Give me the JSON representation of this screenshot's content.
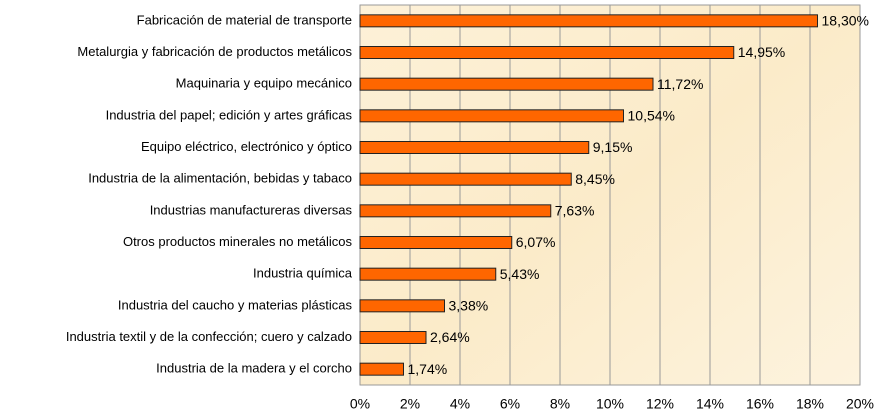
{
  "chart_data": {
    "type": "barh",
    "categories": [
      "Fabricación de material de transporte",
      "Metalurgia y fabricación de productos metálicos",
      "Maquinaria y equipo mecánico",
      "Industria del papel; edición y artes gráficas",
      "Equipo eléctrico, electrónico y óptico",
      "Industria de la alimentación, bebidas y tabaco",
      "Industrias manufactureras diversas",
      "Otros productos minerales no metálicos",
      "Industria química",
      "Industria del caucho y materias plásticas",
      "Industria textil y de la confección; cuero y calzado",
      "Industria de la madera y el corcho"
    ],
    "values": [
      18.3,
      14.95,
      11.72,
      10.54,
      9.15,
      8.45,
      7.63,
      6.07,
      5.43,
      3.38,
      2.64,
      1.74
    ],
    "value_labels": [
      "18,30%",
      "14,95%",
      "11,72%",
      "10,54%",
      "9,15%",
      "8,45%",
      "7,63%",
      "6,07%",
      "5,43%",
      "3,38%",
      "2,64%",
      "1,74%"
    ],
    "color": "#ff6600",
    "xlim": [
      0,
      20
    ],
    "xticks": [
      {
        "value": 0,
        "label": "0%"
      },
      {
        "value": 2,
        "label": "2%"
      },
      {
        "value": 4,
        "label": "4%"
      },
      {
        "value": 6,
        "label": "6%"
      },
      {
        "value": 8,
        "label": "8%"
      },
      {
        "value": 10,
        "label": "10%"
      },
      {
        "value": 12,
        "label": "12%"
      },
      {
        "value": 14,
        "label": "14%"
      },
      {
        "value": 16,
        "label": "16%"
      },
      {
        "value": 18,
        "label": "18%"
      },
      {
        "value": 20,
        "label": "20%"
      }
    ],
    "grid": true
  }
}
